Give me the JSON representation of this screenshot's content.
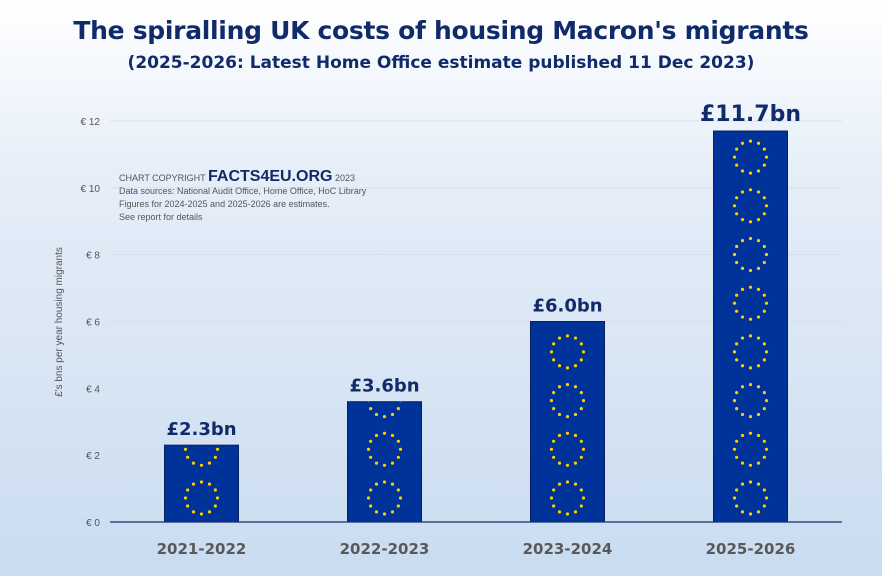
{
  "chart_data": {
    "type": "bar",
    "title": "The spiralling UK costs of housing Macron's migrants",
    "subtitle": "(2025-2026: Latest Home Office estimate published 11 Dec 2023)",
    "categories": [
      "2021-2022",
      "2022-2023",
      "2023-2024",
      "2025-2026"
    ],
    "values": [
      2.3,
      3.6,
      6.0,
      11.7
    ],
    "data_labels": [
      "£2.3bn",
      "£3.6bn",
      "£6.0bn",
      "£11.7bn"
    ],
    "xlabel": "",
    "ylabel": "£'s bns per year housing migrants",
    "ylim": [
      0,
      12
    ],
    "yticks": [
      0,
      2,
      4,
      6,
      8,
      10,
      12
    ],
    "ytick_labels": [
      "€ 0",
      "€ 2",
      "€ 4",
      "€ 6",
      "€ 8",
      "€ 10",
      "€ 12"
    ],
    "grid": true,
    "colors": {
      "bar": "#003399",
      "stars": "#ffcc00",
      "text": "#112b6a"
    }
  },
  "note": {
    "copyright_prefix": "CHART COPYRIGHT",
    "brand": "FACTS4EU.ORG",
    "year": "2023",
    "lines": [
      "Data sources: National Audit Office, Home Office, HoC Library",
      "Figures for 2024-2025 and 2025-2026 are estimates.",
      "See report for details"
    ]
  }
}
